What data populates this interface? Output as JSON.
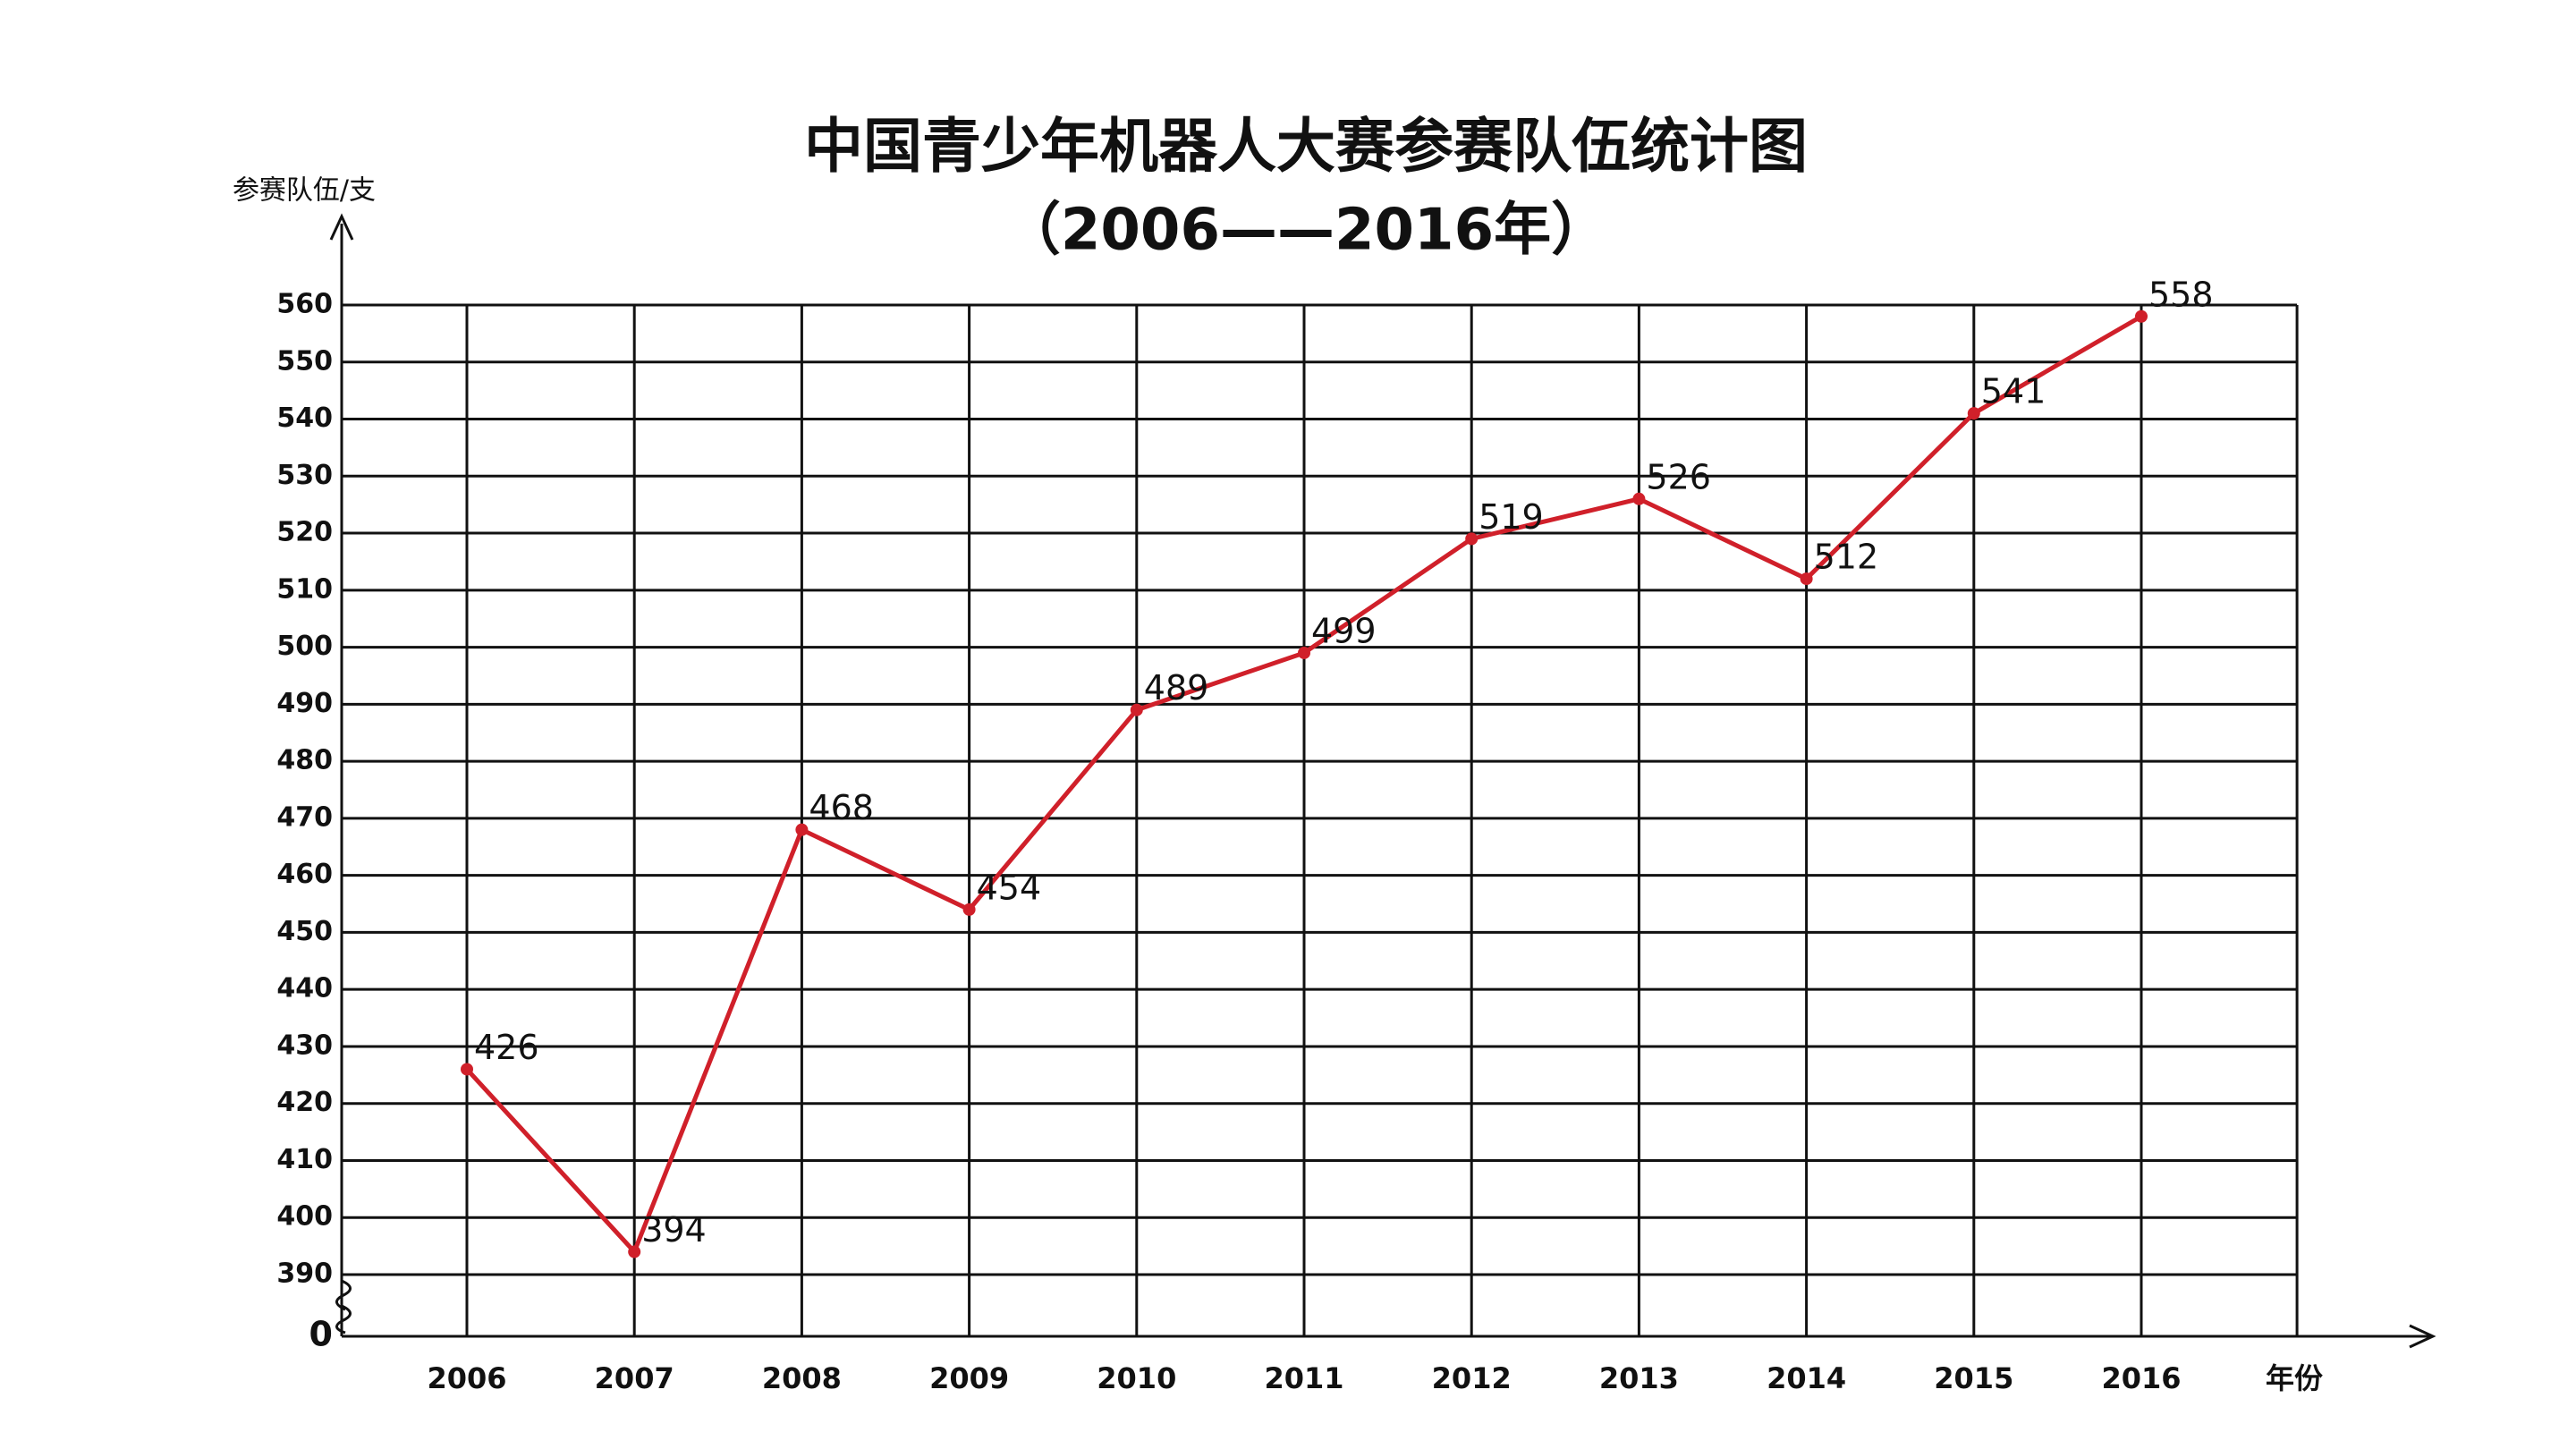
{
  "chart_data": {
    "type": "line",
    "title": "中国青少年机器人大赛参赛队伍统计图",
    "subtitle": "（2006——2016年）",
    "y_label": "参赛队伍/支",
    "x_label": "年份",
    "categories": [
      "2006",
      "2007",
      "2008",
      "2009",
      "2010",
      "2011",
      "2012",
      "2013",
      "2014",
      "2015",
      "2016"
    ],
    "values": [
      426,
      394,
      468,
      454,
      489,
      499,
      519,
      526,
      512,
      541,
      558
    ],
    "color": "#d0202a",
    "ylim": [
      0,
      560
    ],
    "y_break": [
      0,
      390
    ],
    "yticks": [
      0,
      390,
      400,
      410,
      420,
      430,
      440,
      450,
      460,
      470,
      480,
      490,
      500,
      510,
      520,
      530,
      540,
      550,
      560
    ],
    "grid": true
  }
}
